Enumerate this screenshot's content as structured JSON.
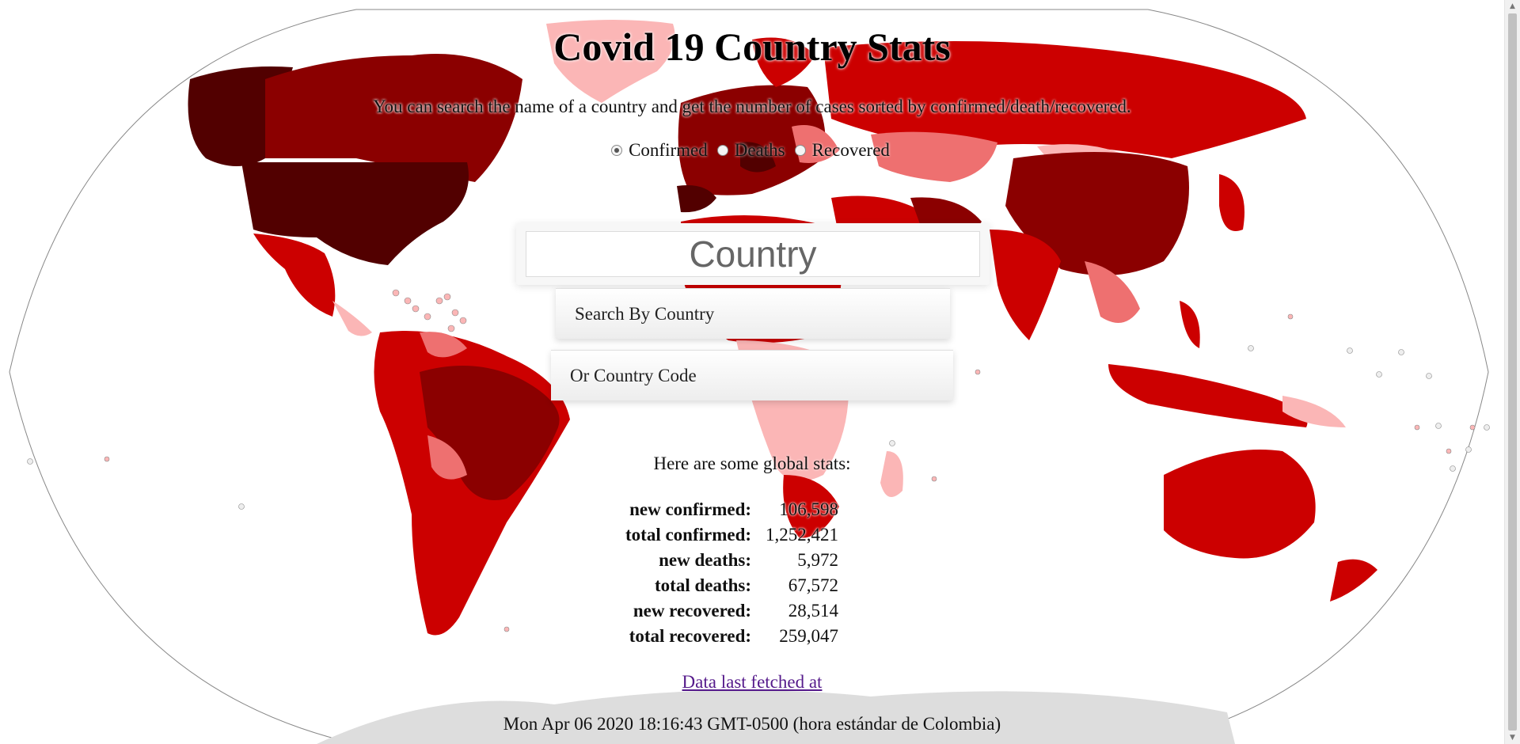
{
  "header": {
    "title": "Covid 19 Country Stats",
    "subtitle": "You can search the name of a country and get the number of cases sorted by confirmed/death/recovered."
  },
  "sort_options": [
    {
      "label": "Confirmed",
      "checked": true
    },
    {
      "label": "Deaths",
      "checked": false
    },
    {
      "label": "Recovered",
      "checked": false
    }
  ],
  "search": {
    "placeholder": "Country",
    "value": "",
    "options": [
      "Search By Country",
      "Or Country Code"
    ]
  },
  "global_stats": {
    "heading": "Here are some global stats:",
    "rows": [
      {
        "label": "new confirmed:",
        "value": "106,598"
      },
      {
        "label": "total confirmed:",
        "value": "1,252,421"
      },
      {
        "label": "new deaths:",
        "value": "5,972"
      },
      {
        "label": "total deaths:",
        "value": "67,572"
      },
      {
        "label": "new recovered:",
        "value": "28,514"
      },
      {
        "label": "total recovered:",
        "value": "259,047"
      }
    ]
  },
  "footer": {
    "link_text": "Data last fetched at",
    "timestamp": "Mon Apr 06 2020 18:16:43 GMT-0500 (hora estándar de Colombia)"
  },
  "map": {
    "colors": {
      "darkest": "#520000",
      "dark": "#8b0000",
      "medium": "#cc0000",
      "light": "#ee7070",
      "lighter": "#fbb6b6",
      "no_data": "#dddddd",
      "ocean": "#ffffff"
    }
  }
}
